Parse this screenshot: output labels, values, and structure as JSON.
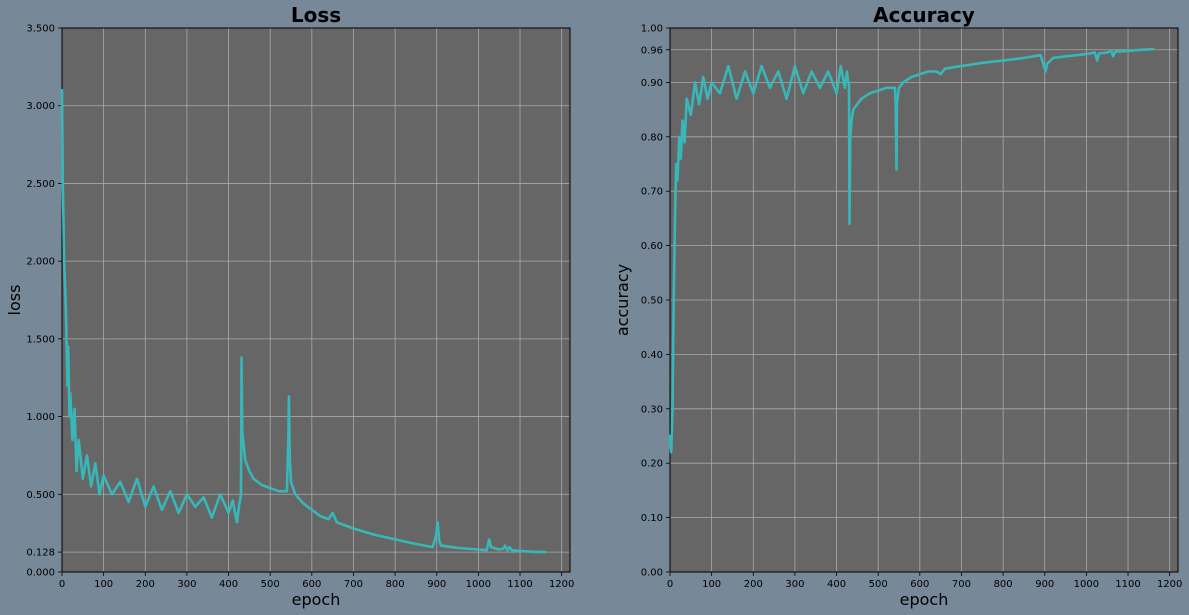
{
  "chart_data": [
    {
      "type": "line",
      "title": "Loss",
      "xlabel": "epoch",
      "ylabel": "loss",
      "xlim": [
        0,
        1220
      ],
      "ylim": [
        0,
        3.5
      ],
      "xticks": [
        "0",
        "100",
        "200",
        "300",
        "400",
        "500",
        "600",
        "700",
        "800",
        "900",
        "1000",
        "1100",
        "1200"
      ],
      "yticks": [
        {
          "value": 0,
          "label": "0.000"
        },
        {
          "value": 0.128,
          "label": "0.128"
        },
        {
          "value": 0.5,
          "label": "0.500"
        },
        {
          "value": 1.0,
          "label": "1.000"
        },
        {
          "value": 1.5,
          "label": "1.500"
        },
        {
          "value": 2.0,
          "label": "2.000"
        },
        {
          "value": 2.5,
          "label": "2.500"
        },
        {
          "value": 3.0,
          "label": "3.000"
        },
        {
          "value": 3.5,
          "label": "3.500"
        }
      ],
      "grid": true,
      "colors": {
        "line": "#38b6b8",
        "plot_bg": "#666666",
        "grid": "#aaaaaa"
      },
      "series": [
        {
          "x": [
            0,
            2,
            5,
            8,
            10,
            13,
            15,
            18,
            20,
            25,
            30,
            35,
            40,
            50,
            60,
            70,
            80,
            90,
            100,
            120,
            140,
            160,
            180,
            200,
            220,
            240,
            260,
            280,
            300,
            320,
            340,
            360,
            380,
            400,
            410,
            420,
            425,
            430,
            431,
            433,
            440,
            450,
            460,
            480,
            500,
            520,
            540,
            544,
            545,
            547,
            550,
            560,
            580,
            600,
            620,
            640,
            650,
            660,
            680,
            700,
            750,
            800,
            850,
            890,
            898,
            902,
            906,
            910,
            950,
            1000,
            1020,
            1026,
            1030,
            1050,
            1060,
            1064,
            1070,
            1075,
            1080,
            1100,
            1130,
            1160
          ],
          "y": [
            3.1,
            2.5,
            2.0,
            1.8,
            1.6,
            1.2,
            1.45,
            1.0,
            1.15,
            0.85,
            1.05,
            0.65,
            0.85,
            0.6,
            0.75,
            0.55,
            0.7,
            0.5,
            0.62,
            0.5,
            0.58,
            0.45,
            0.6,
            0.42,
            0.55,
            0.4,
            0.52,
            0.38,
            0.5,
            0.42,
            0.48,
            0.35,
            0.5,
            0.38,
            0.46,
            0.32,
            0.42,
            0.5,
            1.38,
            0.9,
            0.72,
            0.65,
            0.6,
            0.56,
            0.54,
            0.52,
            0.52,
            0.9,
            1.13,
            0.72,
            0.58,
            0.5,
            0.44,
            0.4,
            0.36,
            0.34,
            0.38,
            0.32,
            0.3,
            0.28,
            0.24,
            0.21,
            0.18,
            0.16,
            0.23,
            0.32,
            0.2,
            0.17,
            0.155,
            0.145,
            0.14,
            0.21,
            0.16,
            0.145,
            0.15,
            0.17,
            0.14,
            0.16,
            0.14,
            0.135,
            0.13,
            0.128
          ]
        }
      ]
    },
    {
      "type": "line",
      "title": "Accuracy",
      "xlabel": "epoch",
      "ylabel": "accuracy",
      "xlim": [
        0,
        1220
      ],
      "ylim": [
        0,
        1.0
      ],
      "xticks": [
        "0",
        "100",
        "200",
        "300",
        "400",
        "500",
        "600",
        "700",
        "800",
        "900",
        "1000",
        "1100",
        "1200"
      ],
      "yticks": [
        {
          "value": 0,
          "label": "0.00"
        },
        {
          "value": 0.1,
          "label": "0.10"
        },
        {
          "value": 0.2,
          "label": "0.20"
        },
        {
          "value": 0.3,
          "label": "0.30"
        },
        {
          "value": 0.4,
          "label": "0.40"
        },
        {
          "value": 0.5,
          "label": "0.50"
        },
        {
          "value": 0.6,
          "label": "0.60"
        },
        {
          "value": 0.7,
          "label": "0.70"
        },
        {
          "value": 0.8,
          "label": "0.80"
        },
        {
          "value": 0.9,
          "label": "0.90"
        },
        {
          "value": 0.96,
          "label": "0.96"
        },
        {
          "value": 1.0,
          "label": "1.00"
        }
      ],
      "grid": true,
      "colors": {
        "line": "#38b6b8",
        "plot_bg": "#666666",
        "grid": "#aaaaaa"
      },
      "series": [
        {
          "x": [
            0,
            3,
            6,
            9,
            12,
            15,
            18,
            22,
            26,
            30,
            35,
            40,
            50,
            60,
            70,
            80,
            90,
            100,
            120,
            140,
            160,
            180,
            200,
            220,
            240,
            260,
            280,
            300,
            320,
            340,
            360,
            380,
            400,
            410,
            420,
            425,
            428,
            430,
            431,
            433,
            436,
            440,
            460,
            480,
            500,
            520,
            540,
            542,
            544,
            545,
            547,
            550,
            560,
            580,
            600,
            620,
            640,
            650,
            660,
            680,
            700,
            750,
            800,
            850,
            890,
            898,
            902,
            906,
            920,
            950,
            1000,
            1020,
            1026,
            1030,
            1050,
            1060,
            1064,
            1070,
            1080,
            1100,
            1130,
            1160
          ],
          "y": [
            0.25,
            0.22,
            0.3,
            0.5,
            0.65,
            0.75,
            0.72,
            0.8,
            0.76,
            0.83,
            0.79,
            0.87,
            0.84,
            0.9,
            0.86,
            0.91,
            0.87,
            0.9,
            0.88,
            0.93,
            0.87,
            0.92,
            0.88,
            0.93,
            0.89,
            0.92,
            0.87,
            0.93,
            0.88,
            0.92,
            0.89,
            0.92,
            0.88,
            0.93,
            0.89,
            0.92,
            0.9,
            0.9,
            0.64,
            0.8,
            0.83,
            0.85,
            0.87,
            0.88,
            0.885,
            0.89,
            0.89,
            0.86,
            0.74,
            0.86,
            0.875,
            0.89,
            0.9,
            0.91,
            0.915,
            0.92,
            0.92,
            0.915,
            0.925,
            0.928,
            0.93,
            0.936,
            0.94,
            0.945,
            0.95,
            0.93,
            0.92,
            0.935,
            0.945,
            0.948,
            0.952,
            0.955,
            0.94,
            0.953,
            0.955,
            0.958,
            0.948,
            0.957,
            0.957,
            0.958,
            0.96,
            0.961
          ]
        }
      ]
    }
  ]
}
